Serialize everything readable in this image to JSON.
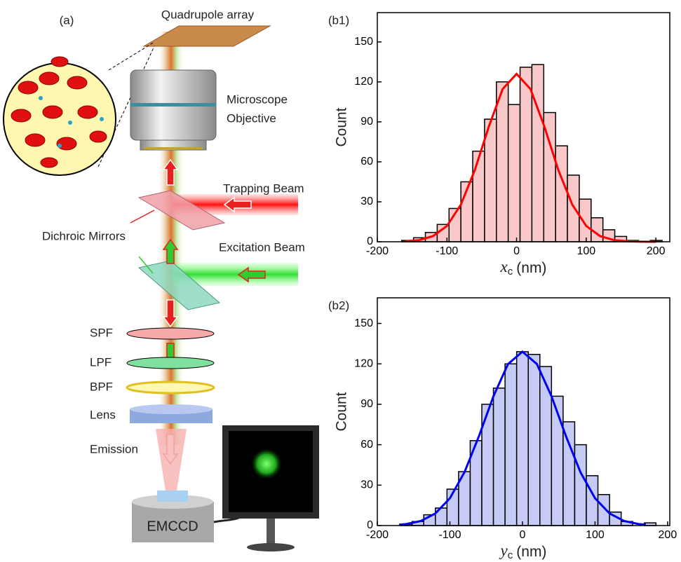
{
  "diagram": {
    "panel_label": "(a)",
    "array_label": "Quadrupole array",
    "objective_label": [
      "Microscope",
      "Objective"
    ],
    "trapping_label": "Trapping Beam",
    "mirror_label": "Dichroic Mirrors",
    "excitation_label": "Excitation Beam",
    "filters": [
      "SPF",
      "LPF",
      "BPF",
      "Lens"
    ],
    "emission_label": "Emission",
    "camera_label": "EMCCD"
  },
  "chart_data": [
    {
      "type": "histogram",
      "panel_label": "(b1)",
      "bins": [
        -165,
        -148,
        -131,
        -114,
        -97,
        -80,
        -63,
        -46,
        -29,
        -12,
        5,
        22,
        39,
        56,
        73,
        90,
        107,
        124,
        141,
        158,
        175,
        192,
        209
      ],
      "counts": [
        1,
        3,
        7,
        13,
        25,
        45,
        68,
        92,
        120,
        103,
        131,
        133,
        97,
        72,
        50,
        32,
        18,
        9,
        4,
        1,
        0,
        1
      ],
      "color": "#f9c9c9",
      "edgecolor": "#000000",
      "fit": {
        "x": [
          -160,
          -140,
          -120,
          -100,
          -80,
          -60,
          -40,
          -20,
          0,
          20,
          40,
          60,
          80,
          100,
          120,
          140,
          160,
          180,
          200
        ],
        "values": [
          0.3,
          1.2,
          4.2,
          11.9,
          27.8,
          53.8,
          86.3,
          114.6,
          126,
          114.6,
          86.3,
          53.8,
          27.8,
          11.9,
          4.2,
          1.2,
          0.3,
          0.05,
          0.01
        ],
        "color": "#ff0000"
      },
      "xlim": [
        -200,
        220
      ],
      "ylim": [
        0,
        172
      ],
      "xticks": [
        -200,
        -100,
        0,
        100,
        200
      ],
      "yticks": [
        0,
        30,
        60,
        90,
        120,
        150
      ],
      "ylabel": "Count",
      "xlabel": {
        "symbol": "x",
        "subscript": "c",
        "unit": "(nm)"
      }
    },
    {
      "type": "histogram",
      "panel_label": "(b2)",
      "bins": [
        -168,
        -152,
        -136,
        -120,
        -104,
        -88,
        -72,
        -56,
        -40,
        -24,
        -8,
        8,
        24,
        40,
        56,
        72,
        88,
        104,
        120,
        136,
        152,
        168,
        184
      ],
      "counts": [
        1,
        3,
        8,
        13,
        27,
        40,
        63,
        90,
        102,
        120,
        129,
        127,
        118,
        96,
        77,
        60,
        37,
        23,
        10,
        3,
        0,
        2
      ],
      "color": "#c5cbf5",
      "edgecolor": "#000000",
      "fit": {
        "x": [
          -170,
          -160,
          -140,
          -120,
          -100,
          -80,
          -60,
          -40,
          -20,
          0,
          20,
          40,
          60,
          80,
          100,
          120,
          140,
          160,
          170
        ],
        "values": [
          0.6,
          1.1,
          3.4,
          9,
          20.3,
          39.5,
          66.3,
          96,
          119.8,
          129,
          119.8,
          96,
          66.3,
          39.5,
          20.3,
          9,
          3.4,
          1.1,
          0.6
        ],
        "color": "#0000ee"
      },
      "xlim": [
        -200,
        203
      ],
      "ylim": [
        0,
        169
      ],
      "xticks": [
        -200,
        -100,
        0,
        100,
        200
      ],
      "yticks": [
        0,
        30,
        60,
        90,
        120,
        150
      ],
      "ylabel": "Count",
      "xlabel": {
        "symbol": "y",
        "subscript": "c",
        "unit": "(nm)"
      }
    }
  ]
}
